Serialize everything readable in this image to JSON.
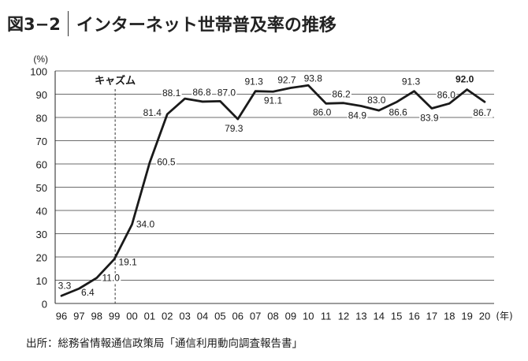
{
  "figure_label": "図3−2",
  "source": "出所：総務省情報通信政策局「通信利用動向調査報告書」",
  "chart_data": {
    "type": "line",
    "title": "インターネット世帯普及率の推移",
    "xlabel": "(年)",
    "ylabel": "(%)",
    "categories": [
      "96",
      "97",
      "98",
      "99",
      "00",
      "01",
      "02",
      "03",
      "04",
      "05",
      "06",
      "07",
      "08",
      "09",
      "10",
      "11",
      "12",
      "13",
      "14",
      "15",
      "16",
      "17",
      "18",
      "19",
      "20"
    ],
    "values": [
      3.3,
      6.4,
      11.0,
      19.1,
      34.0,
      60.5,
      81.4,
      88.1,
      86.8,
      87.0,
      79.3,
      91.3,
      91.1,
      92.7,
      93.8,
      86.0,
      86.2,
      84.9,
      83.0,
      86.6,
      91.3,
      83.9,
      86.0,
      92.0,
      86.7
    ],
    "ylim": [
      0,
      100
    ],
    "yticks": [
      0,
      10,
      20,
      30,
      40,
      50,
      60,
      70,
      80,
      90,
      100
    ],
    "grid": true,
    "data_labels": true,
    "annotations": [
      {
        "text": "キャズム",
        "x": "99",
        "line": "dashed-vertical"
      }
    ],
    "line_color": "#1a1a1a"
  }
}
